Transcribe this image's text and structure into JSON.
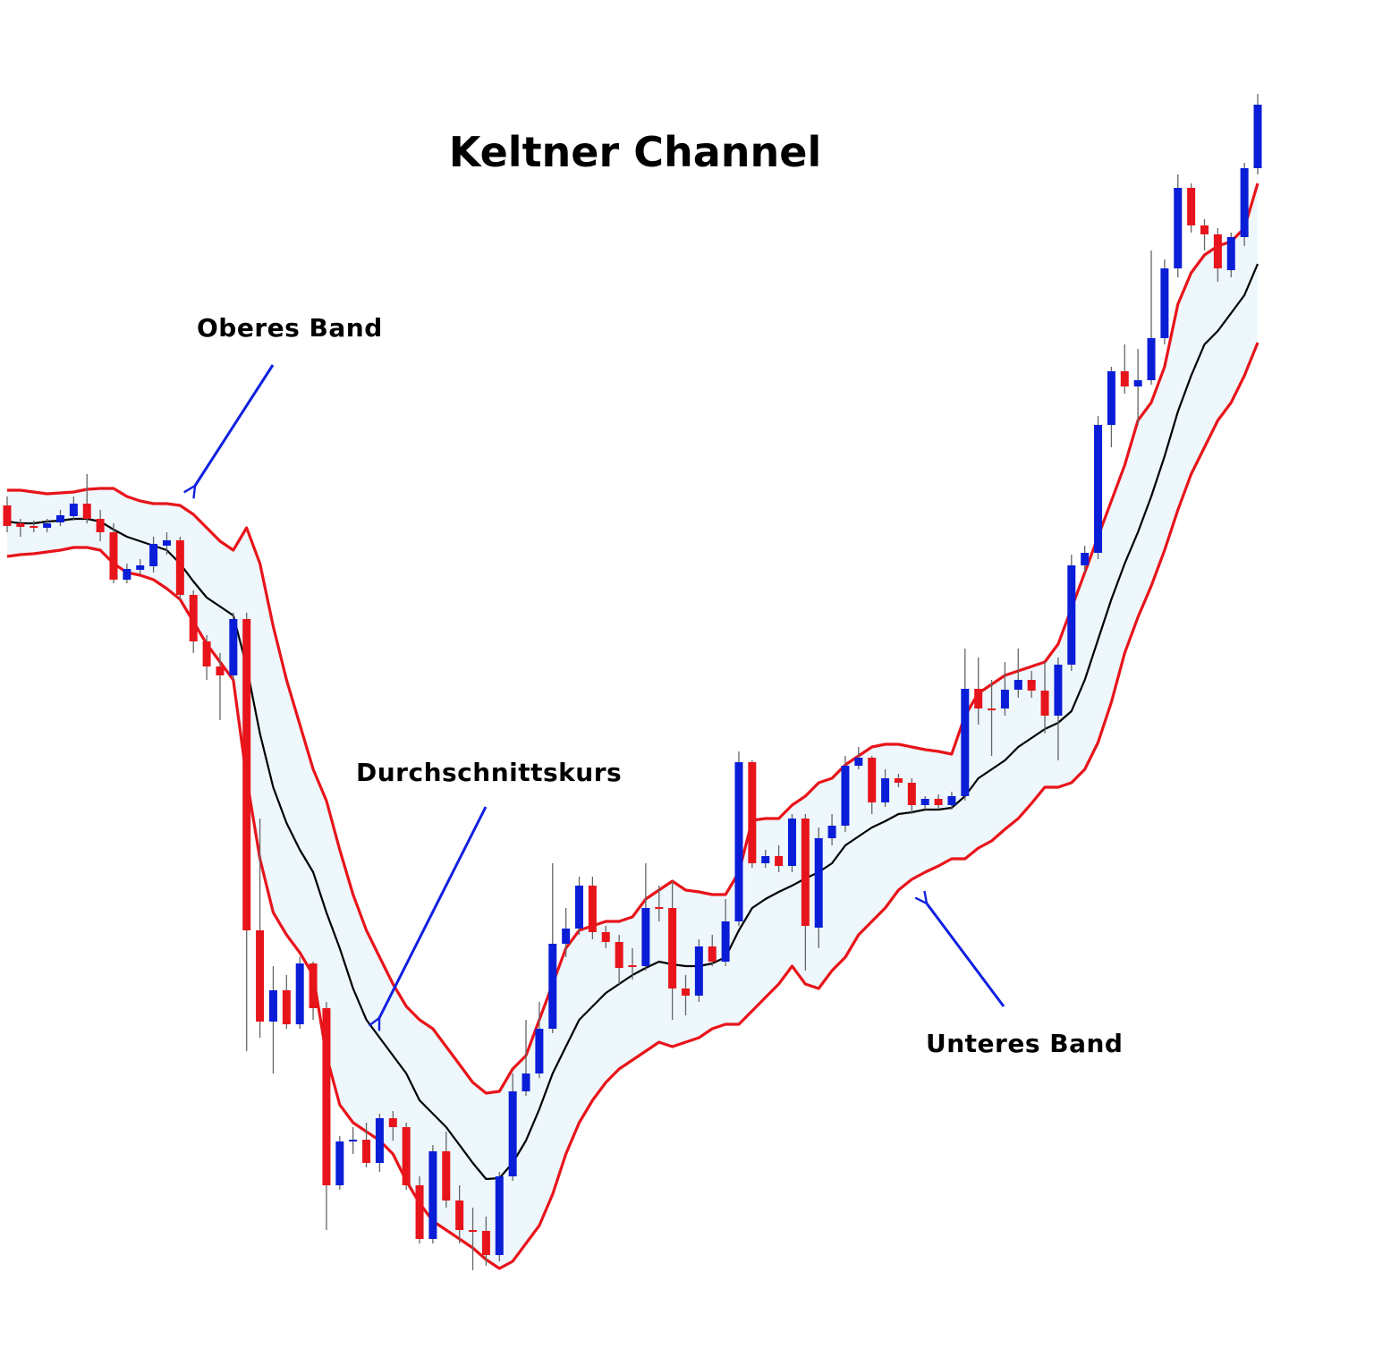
{
  "chart_data": {
    "type": "candlestick",
    "title": "Keltner Channel",
    "annotations": [
      "Oberes Band",
      "Durchschnittskurs",
      "Unteres Band"
    ],
    "ylim": [
      0,
      1500
    ],
    "up_color": "#0a1ed8",
    "down_color": "#e8141b",
    "wick_color": "#666666",
    "fill_color": "#eef7fc",
    "open": [
      935,
      915,
      912,
      910,
      916,
      923,
      937,
      920,
      905,
      852,
      863,
      867,
      890,
      896,
      835,
      783,
      755,
      745,
      808,
      460,
      358,
      393,
      355,
      423,
      373,
      175,
      224,
      226,
      200,
      250,
      240,
      175,
      115,
      213,
      158,
      125,
      124,
      97,
      185,
      280,
      300,
      350,
      445,
      462,
      510,
      458,
      447,
      421,
      420,
      486,
      485,
      395,
      387,
      442,
      425,
      470,
      648,
      535,
      543,
      532,
      585,
      463,
      563,
      577,
      644,
      653,
      603,
      630,
      625,
      600,
      607,
      600,
      610,
      730,
      708,
      708,
      729,
      740,
      728,
      700,
      757,
      868,
      882,
      1025,
      1085,
      1068,
      1075,
      1122,
      1200,
      1290,
      1248,
      1238,
      1198,
      1235,
      1312
    ],
    "high": [
      945,
      920,
      918,
      920,
      930,
      945,
      970,
      930,
      915,
      870,
      875,
      900,
      905,
      900,
      840,
      790,
      770,
      815,
      815,
      585,
      420,
      410,
      430,
      425,
      380,
      230,
      240,
      245,
      255,
      258,
      245,
      185,
      220,
      235,
      175,
      150,
      140,
      190,
      300,
      360,
      380,
      535,
      485,
      520,
      520,
      465,
      455,
      440,
      535,
      510,
      515,
      410,
      450,
      455,
      495,
      660,
      650,
      550,
      555,
      590,
      590,
      575,
      590,
      655,
      665,
      655,
      640,
      635,
      630,
      610,
      612,
      615,
      775,
      765,
      740,
      760,
      775,
      750,
      760,
      765,
      880,
      890,
      1035,
      1090,
      1115,
      1110,
      1220,
      1210,
      1305,
      1295,
      1255,
      1245,
      1240,
      1318,
      1395
    ],
    "low": [
      905,
      900,
      905,
      905,
      912,
      918,
      915,
      895,
      848,
      848,
      858,
      860,
      880,
      830,
      770,
      740,
      695,
      740,
      325,
      340,
      300,
      350,
      350,
      360,
      125,
      170,
      210,
      195,
      190,
      225,
      170,
      110,
      110,
      150,
      110,
      80,
      85,
      90,
      180,
      275,
      295,
      345,
      430,
      455,
      450,
      440,
      400,
      405,
      415,
      470,
      360,
      365,
      380,
      420,
      420,
      465,
      530,
      530,
      525,
      525,
      415,
      440,
      555,
      570,
      640,
      590,
      598,
      620,
      590,
      595,
      595,
      595,
      605,
      690,
      655,
      700,
      720,
      720,
      680,
      650,
      750,
      860,
      875,
      1000,
      1060,
      1025,
      1070,
      1115,
      1190,
      1240,
      1220,
      1185,
      1190,
      1225,
      1305
    ],
    "close": [
      912,
      911,
      911,
      915,
      924,
      937,
      920,
      905,
      852,
      864,
      868,
      892,
      896,
      835,
      783,
      755,
      745,
      808,
      460,
      358,
      393,
      355,
      423,
      373,
      175,
      224,
      226,
      200,
      250,
      240,
      175,
      115,
      213,
      158,
      125,
      124,
      97,
      185,
      280,
      300,
      350,
      445,
      462,
      510,
      458,
      447,
      418,
      419,
      485,
      485,
      395,
      387,
      442,
      425,
      470,
      648,
      535,
      543,
      532,
      585,
      465,
      563,
      577,
      644,
      653,
      603,
      630,
      625,
      600,
      607,
      600,
      610,
      730,
      708,
      707,
      729,
      740,
      728,
      700,
      757,
      868,
      882,
      1025,
      1085,
      1068,
      1075,
      1122,
      1200,
      1290,
      1248,
      1238,
      1200,
      1235,
      1312,
      1383
    ],
    "bands": [
      {
        "color": "#e8141b",
        "values": [
          952,
          952,
          950,
          948,
          949,
          950,
          953,
          954,
          954,
          945,
          940,
          937,
          937,
          935,
          925,
          910,
          895,
          885,
          910,
          870,
          800,
          740,
          690,
          640,
          605,
          550,
          500,
          460,
          430,
          400,
          375,
          360,
          350,
          330,
          310,
          290,
          278,
          280,
          305,
          320,
          360,
          400,
          440,
          460,
          465,
          470,
          470,
          475,
          495,
          505,
          515,
          505,
          503,
          500,
          500,
          525,
          583,
          585,
          585,
          600,
          610,
          625,
          630,
          645,
          655,
          665,
          668,
          668,
          665,
          662,
          660,
          657,
          700,
          725,
          735,
          745,
          750,
          755,
          760,
          780,
          820,
          860,
          900,
          940,
          980,
          1030,
          1050,
          1090,
          1160,
          1195,
          1215,
          1225,
          1230,
          1245,
          1295
        ]
      },
      {
        "color": "#000000",
        "values": [
          917,
          915,
          915,
          917,
          918,
          920,
          920,
          917,
          908,
          900,
          895,
          890,
          885,
          870,
          850,
          832,
          822,
          812,
          755,
          680,
          620,
          580,
          550,
          525,
          480,
          440,
          395,
          360,
          340,
          320,
          300,
          270,
          255,
          240,
          220,
          200,
          182,
          183,
          200,
          225,
          260,
          300,
          330,
          360,
          375,
          390,
          400,
          410,
          418,
          425,
          422,
          420,
          420,
          423,
          430,
          460,
          485,
          495,
          503,
          510,
          518,
          525,
          535,
          555,
          565,
          575,
          582,
          590,
          592,
          595,
          595,
          597,
          610,
          630,
          640,
          650,
          665,
          675,
          685,
          692,
          705,
          740,
          785,
          830,
          870,
          905,
          945,
          990,
          1040,
          1080,
          1115,
          1130,
          1150,
          1170,
          1205
        ]
      },
      {
        "color": "#e8141b",
        "values": [
          878,
          880,
          881,
          883,
          885,
          888,
          888,
          885,
          870,
          860,
          857,
          852,
          842,
          830,
          805,
          780,
          760,
          740,
          630,
          540,
          480,
          455,
          435,
          410,
          320,
          265,
          245,
          235,
          225,
          210,
          180,
          155,
          135,
          125,
          115,
          105,
          92,
          82,
          90,
          110,
          130,
          165,
          210,
          245,
          270,
          290,
          305,
          315,
          325,
          335,
          330,
          335,
          340,
          350,
          355,
          355,
          370,
          385,
          400,
          420,
          400,
          395,
          415,
          430,
          455,
          470,
          485,
          505,
          517,
          525,
          532,
          540,
          540,
          552,
          560,
          573,
          585,
          602,
          620,
          620,
          625,
          640,
          670,
          715,
          770,
          810,
          845,
          885,
          930,
          970,
          1000,
          1030,
          1050,
          1080,
          1117
        ]
      }
    ]
  }
}
